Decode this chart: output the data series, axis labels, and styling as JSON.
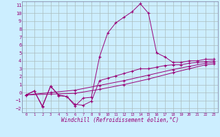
{
  "xlabel": "Windchill (Refroidissement éolien,°C)",
  "bg_color": "#cceeff",
  "line_color": "#990077",
  "grid_color": "#aabbbb",
  "xlim": [
    -0.5,
    23.5
  ],
  "ylim": [
    -2.5,
    11.5
  ],
  "yticks": [
    -2,
    -1,
    0,
    1,
    2,
    3,
    4,
    5,
    6,
    7,
    8,
    9,
    10,
    11
  ],
  "xticks": [
    0,
    1,
    2,
    3,
    4,
    5,
    6,
    7,
    8,
    9,
    10,
    11,
    12,
    13,
    14,
    15,
    16,
    17,
    18,
    19,
    20,
    21,
    22,
    23
  ],
  "series1": [
    [
      0,
      -0.3
    ],
    [
      1,
      0.2
    ],
    [
      2,
      -1.8
    ],
    [
      3,
      0.8
    ],
    [
      4,
      -0.4
    ],
    [
      5,
      -0.5
    ],
    [
      6,
      -1.7
    ],
    [
      7,
      -0.7
    ],
    [
      8,
      -0.6
    ],
    [
      9,
      4.5
    ],
    [
      10,
      7.5
    ],
    [
      11,
      8.8
    ],
    [
      12,
      9.5
    ],
    [
      13,
      10.2
    ],
    [
      14,
      11.2
    ],
    [
      15,
      10.0
    ],
    [
      16,
      5.0
    ],
    [
      17,
      4.5
    ],
    [
      18,
      3.8
    ],
    [
      19,
      3.8
    ],
    [
      20,
      4.0
    ],
    [
      21,
      4.0
    ],
    [
      22,
      4.2
    ],
    [
      23,
      4.2
    ]
  ],
  "series2": [
    [
      0,
      -0.3
    ],
    [
      1,
      0.2
    ],
    [
      2,
      -1.7
    ],
    [
      3,
      0.8
    ],
    [
      4,
      -0.3
    ],
    [
      5,
      -0.5
    ],
    [
      6,
      -1.5
    ],
    [
      7,
      -1.6
    ],
    [
      8,
      -1.1
    ],
    [
      9,
      1.5
    ],
    [
      10,
      1.8
    ],
    [
      11,
      2.1
    ],
    [
      12,
      2.4
    ],
    [
      13,
      2.7
    ],
    [
      14,
      3.0
    ],
    [
      15,
      3.0
    ],
    [
      16,
      3.2
    ],
    [
      17,
      3.4
    ],
    [
      18,
      3.5
    ],
    [
      19,
      3.5
    ],
    [
      20,
      3.7
    ],
    [
      21,
      3.8
    ],
    [
      22,
      3.9
    ],
    [
      23,
      4.0
    ]
  ],
  "series3": [
    [
      0,
      -0.3
    ],
    [
      3,
      0.0
    ],
    [
      6,
      0.3
    ],
    [
      9,
      0.9
    ],
    [
      12,
      1.5
    ],
    [
      15,
      2.2
    ],
    [
      18,
      2.9
    ],
    [
      20,
      3.3
    ],
    [
      22,
      3.7
    ],
    [
      23,
      3.8
    ]
  ],
  "series4": [
    [
      0,
      -0.3
    ],
    [
      3,
      -0.2
    ],
    [
      6,
      -0.1
    ],
    [
      9,
      0.4
    ],
    [
      12,
      1.0
    ],
    [
      15,
      1.7
    ],
    [
      18,
      2.5
    ],
    [
      20,
      3.0
    ],
    [
      22,
      3.5
    ],
    [
      23,
      3.6
    ]
  ]
}
